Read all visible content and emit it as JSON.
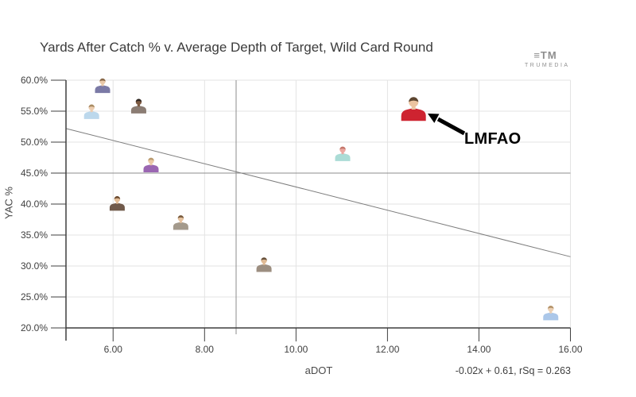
{
  "branding": {
    "glyph": "≡TM",
    "name": "TRUMEDIA"
  },
  "chart_data": {
    "type": "scatter",
    "title": "Yards After Catch % v. Average Depth of Target, Wild Card Round",
    "xlabel": "aDOT",
    "ylabel": "YAC %",
    "xlim": [
      4.97,
      16
    ],
    "ylim": [
      20,
      60
    ],
    "grid": true,
    "x_ticks": [
      6,
      8,
      10,
      12,
      14,
      16
    ],
    "x_tick_labels": [
      "6.00",
      "8.00",
      "10.00",
      "12.00",
      "14.00",
      "16.00"
    ],
    "y_ticks": [
      60,
      55,
      50,
      45,
      40,
      35,
      30,
      25,
      20
    ],
    "y_tick_labels": [
      "60.0%",
      "55.0%",
      "50.0%",
      "45.0%",
      "40.0%",
      "35.0%",
      "30.0%",
      "25.0%",
      "20.0%"
    ],
    "mean_lines": {
      "x": 8.69,
      "y": 45.0
    },
    "trend_line": {
      "x1": 4.97,
      "y1": 52.2,
      "x2": 16,
      "y2": 31.5,
      "equation": "-0.02x + 0.61, rSq = 0.263"
    },
    "annotation": {
      "label": "LMFAO",
      "target_adot": 12.57,
      "target_yac": 55.5
    },
    "points": [
      {
        "adot": 5.77,
        "yac": 59.2,
        "jersey": "#7b7aa6",
        "skin": "#e9c9a9",
        "hair": "#8a6a4a",
        "size": 19,
        "highlighted": false
      },
      {
        "adot": 5.53,
        "yac": 55.0,
        "jersey": "#bcd8ec",
        "skin": "#eccdb0",
        "hair": "#a98b62",
        "size": 19,
        "highlighted": false
      },
      {
        "adot": 6.56,
        "yac": 55.9,
        "jersey": "#8b7d74",
        "skin": "#7c5a42",
        "hair": "#2e2620",
        "size": 19,
        "highlighted": false
      },
      {
        "adot": 6.83,
        "yac": 46.4,
        "jersey": "#9a66b2",
        "skin": "#eac9a6",
        "hair": "#b99a6e",
        "size": 19,
        "highlighted": false
      },
      {
        "adot": 6.09,
        "yac": 40.2,
        "jersey": "#70594a",
        "skin": "#e3bd97",
        "hair": "#6b4a2e",
        "size": 19,
        "highlighted": false
      },
      {
        "adot": 7.48,
        "yac": 37.1,
        "jersey": "#a49a8c",
        "skin": "#e6c3a0",
        "hair": "#7a5c3e",
        "size": 19,
        "highlighted": false
      },
      {
        "adot": 9.3,
        "yac": 30.3,
        "jersey": "#9c8e80",
        "skin": "#e0ba94",
        "hair": "#67503a",
        "size": 19,
        "highlighted": false
      },
      {
        "adot": 11.02,
        "yac": 48.2,
        "jersey": "#abdcd6",
        "skin": "#eba9a2",
        "hair": "#c4766a",
        "size": 19,
        "highlighted": false
      },
      {
        "adot": 12.57,
        "yac": 55.5,
        "jersey": "#ce2330",
        "skin": "#ecc4a0",
        "hair": "#5d4630",
        "size": 31,
        "highlighted": true
      },
      {
        "adot": 15.57,
        "yac": 22.5,
        "jersey": "#abc7e9",
        "skin": "#ecd0b4",
        "hair": "#b4936a",
        "size": 19,
        "highlighted": false
      }
    ]
  }
}
